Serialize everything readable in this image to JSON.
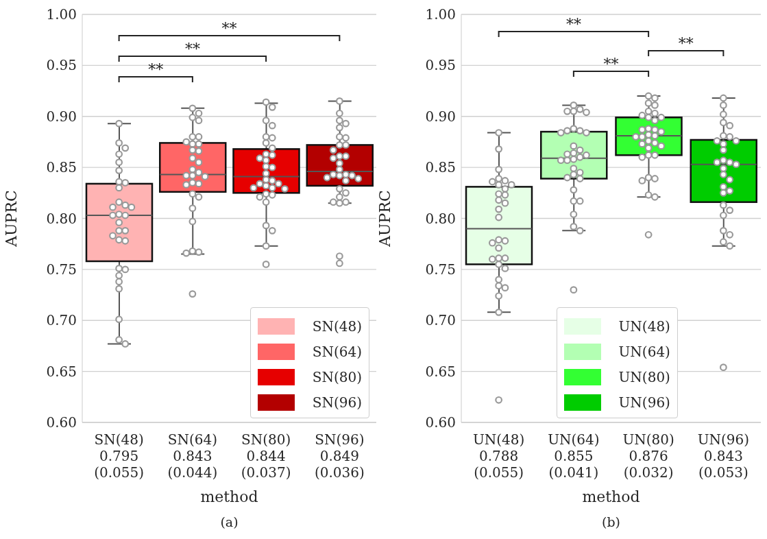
{
  "chart_data": [
    {
      "type": "box",
      "xlabel": "method",
      "ylabel": "AUPRC",
      "categories": [
        "SN(48)\n0.795\n(0.055)",
        "SN(64)\n0.843\n(0.044)",
        "SN(80)\n0.844\n(0.037)",
        "SN(96)\n0.849\n(0.036)"
      ],
      "ylim": [
        0.6,
        1.0
      ],
      "yticks": [
        {
          "value": 0.6,
          "label": "0.60"
        },
        {
          "value": 0.65,
          "label": "0.65"
        },
        {
          "value": 0.7,
          "label": "0.70"
        },
        {
          "value": 0.75,
          "label": "0.75"
        },
        {
          "value": 0.8,
          "label": "0.80"
        },
        {
          "value": 0.85,
          "label": "0.85"
        },
        {
          "value": 0.9,
          "label": "0.90"
        },
        {
          "value": 0.95,
          "label": "0.95"
        },
        {
          "value": 1.0,
          "label": "1.00"
        }
      ],
      "grid": "y",
      "legend": "bottom right",
      "marker": "circle",
      "annotations": [
        "**",
        "**",
        "**",
        "(a)"
      ],
      "series": [
        {
          "type": "box",
          "name": "SN(48)",
          "color": "#ffb3b3",
          "boxes": [
            {
              "low": 0.677,
              "q1": 0.758,
              "median": 0.803,
              "q3": 0.834,
              "high": 0.893
            },
            null,
            null,
            null
          ]
        },
        {
          "type": "box",
          "name": "SN(64)",
          "color": "#ff6666",
          "boxes": [
            null,
            {
              "low": 0.765,
              "q1": 0.826,
              "median": 0.843,
              "q3": 0.874,
              "high": 0.908
            },
            null,
            null
          ]
        },
        {
          "type": "box",
          "name": "SN(80)",
          "color": "#e60000",
          "boxes": [
            null,
            null,
            {
              "low": 0.773,
              "q1": 0.825,
              "median": 0.841,
              "q3": 0.868,
              "high": 0.913
            },
            null
          ]
        },
        {
          "type": "box",
          "name": "SN(96)",
          "color": "#b30000",
          "boxes": [
            null,
            null,
            null,
            {
              "low": 0.815,
              "q1": 0.832,
              "median": 0.846,
              "q3": 0.872,
              "high": 0.915
            }
          ]
        },
        {
          "type": "scatter",
          "color": "#999999",
          "x": [
            "SN(48)\n0.795\n(0.055)",
            "SN(48)\n0.795\n(0.055)",
            "SN(48)\n0.795\n(0.055)",
            "SN(48)\n0.795\n(0.055)",
            "SN(48)\n0.795\n(0.055)",
            "SN(48)\n0.795\n(0.055)",
            "SN(48)\n0.795\n(0.055)",
            "SN(48)\n0.795\n(0.055)",
            "SN(48)\n0.795\n(0.055)",
            "SN(48)\n0.795\n(0.055)",
            "SN(48)\n0.795\n(0.055)",
            "SN(48)\n0.795\n(0.055)",
            "SN(48)\n0.795\n(0.055)",
            "SN(48)\n0.795\n(0.055)",
            "SN(48)\n0.795\n(0.055)",
            "SN(48)\n0.795\n(0.055)",
            "SN(48)\n0.795\n(0.055)",
            "SN(48)\n0.795\n(0.055)",
            "SN(48)\n0.795\n(0.055)",
            "SN(48)\n0.795\n(0.055)",
            "SN(48)\n0.795\n(0.055)",
            "SN(48)\n0.795\n(0.055)",
            "SN(48)\n0.795\n(0.055)",
            "SN(48)\n0.795\n(0.055)",
            "SN(48)\n0.795\n(0.055)",
            "SN(48)\n0.795\n(0.055)",
            "SN(48)\n0.795\n(0.055)",
            "SN(48)\n0.795\n(0.055)",
            "SN(48)\n0.795\n(0.055)",
            "SN(48)\n0.795\n(0.055)"
          ],
          "values": [
            0.893,
            0.874,
            0.869,
            0.863,
            0.855,
            0.847,
            0.836,
            0.835,
            0.83,
            0.816,
            0.813,
            0.811,
            0.811,
            0.804,
            0.803,
            0.803,
            0.796,
            0.788,
            0.788,
            0.783,
            0.779,
            0.778,
            0.751,
            0.75,
            0.744,
            0.738,
            0.731,
            0.701,
            0.681,
            0.677
          ]
        },
        {
          "type": "scatter",
          "color": "#999999",
          "x": [
            "SN(64)\n0.843\n(0.044)",
            "SN(64)\n0.843\n(0.044)",
            "SN(64)\n0.843\n(0.044)",
            "SN(64)\n0.843\n(0.044)",
            "SN(64)\n0.843\n(0.044)",
            "SN(64)\n0.843\n(0.044)",
            "SN(64)\n0.843\n(0.044)",
            "SN(64)\n0.843\n(0.044)",
            "SN(64)\n0.843\n(0.044)",
            "SN(64)\n0.843\n(0.044)",
            "SN(64)\n0.843\n(0.044)",
            "SN(64)\n0.843\n(0.044)",
            "SN(64)\n0.843\n(0.044)",
            "SN(64)\n0.843\n(0.044)",
            "SN(64)\n0.843\n(0.044)",
            "SN(64)\n0.843\n(0.044)",
            "SN(64)\n0.843\n(0.044)",
            "SN(64)\n0.843\n(0.044)",
            "SN(64)\n0.843\n(0.044)",
            "SN(64)\n0.843\n(0.044)",
            "SN(64)\n0.843\n(0.044)",
            "SN(64)\n0.843\n(0.044)",
            "SN(64)\n0.843\n(0.044)",
            "SN(64)\n0.843\n(0.044)",
            "SN(64)\n0.843\n(0.044)",
            "SN(64)\n0.843\n(0.044)",
            "SN(64)\n0.843\n(0.044)",
            "SN(64)\n0.843\n(0.044)",
            "SN(64)\n0.843\n(0.044)"
          ],
          "values": [
            0.908,
            0.903,
            0.899,
            0.896,
            0.88,
            0.88,
            0.875,
            0.873,
            0.873,
            0.867,
            0.866,
            0.859,
            0.855,
            0.848,
            0.845,
            0.842,
            0.842,
            0.841,
            0.835,
            0.834,
            0.833,
            0.824,
            0.821,
            0.81,
            0.797,
            0.768,
            0.767,
            0.766,
            0.726
          ]
        },
        {
          "type": "scatter",
          "color": "#999999",
          "x": [
            "SN(80)\n0.844\n(0.037)",
            "SN(80)\n0.844\n(0.037)",
            "SN(80)\n0.844\n(0.037)",
            "SN(80)\n0.844\n(0.037)",
            "SN(80)\n0.844\n(0.037)",
            "SN(80)\n0.844\n(0.037)",
            "SN(80)\n0.844\n(0.037)",
            "SN(80)\n0.844\n(0.037)",
            "SN(80)\n0.844\n(0.037)",
            "SN(80)\n0.844\n(0.037)",
            "SN(80)\n0.844\n(0.037)",
            "SN(80)\n0.844\n(0.037)",
            "SN(80)\n0.844\n(0.037)",
            "SN(80)\n0.844\n(0.037)",
            "SN(80)\n0.844\n(0.037)",
            "SN(80)\n0.844\n(0.037)",
            "SN(80)\n0.844\n(0.037)",
            "SN(80)\n0.844\n(0.037)",
            "SN(80)\n0.844\n(0.037)",
            "SN(80)\n0.844\n(0.037)",
            "SN(80)\n0.844\n(0.037)",
            "SN(80)\n0.844\n(0.037)",
            "SN(80)\n0.844\n(0.037)",
            "SN(80)\n0.844\n(0.037)",
            "SN(80)\n0.844\n(0.037)",
            "SN(80)\n0.844\n(0.037)",
            "SN(80)\n0.844\n(0.037)",
            "SN(80)\n0.844\n(0.037)",
            "SN(80)\n0.844\n(0.037)",
            "SN(80)\n0.844\n(0.037)",
            "SN(80)\n0.844\n(0.037)"
          ],
          "values": [
            0.914,
            0.909,
            0.896,
            0.891,
            0.88,
            0.879,
            0.874,
            0.869,
            0.863,
            0.862,
            0.859,
            0.857,
            0.851,
            0.85,
            0.844,
            0.838,
            0.837,
            0.834,
            0.834,
            0.832,
            0.83,
            0.83,
            0.829,
            0.824,
            0.823,
            0.821,
            0.816,
            0.793,
            0.788,
            0.773,
            0.755
          ]
        },
        {
          "type": "scatter",
          "color": "#999999",
          "x": [
            "SN(96)\n0.849\n(0.036)",
            "SN(96)\n0.849\n(0.036)",
            "SN(96)\n0.849\n(0.036)",
            "SN(96)\n0.849\n(0.036)",
            "SN(96)\n0.849\n(0.036)",
            "SN(96)\n0.849\n(0.036)",
            "SN(96)\n0.849\n(0.036)",
            "SN(96)\n0.849\n(0.036)",
            "SN(96)\n0.849\n(0.036)",
            "SN(96)\n0.849\n(0.036)",
            "SN(96)\n0.849\n(0.036)",
            "SN(96)\n0.849\n(0.036)",
            "SN(96)\n0.849\n(0.036)",
            "SN(96)\n0.849\n(0.036)",
            "SN(96)\n0.849\n(0.036)",
            "SN(96)\n0.849\n(0.036)",
            "SN(96)\n0.849\n(0.036)",
            "SN(96)\n0.849\n(0.036)",
            "SN(96)\n0.849\n(0.036)",
            "SN(96)\n0.849\n(0.036)",
            "SN(96)\n0.849\n(0.036)",
            "SN(96)\n0.849\n(0.036)",
            "SN(96)\n0.849\n(0.036)",
            "SN(96)\n0.849\n(0.036)",
            "SN(96)\n0.849\n(0.036)",
            "SN(96)\n0.849\n(0.036)",
            "SN(96)\n0.849\n(0.036)",
            "SN(96)\n0.849\n(0.036)",
            "SN(96)\n0.849\n(0.036)",
            "SN(96)\n0.849\n(0.036)"
          ],
          "values": [
            0.915,
            0.903,
            0.896,
            0.893,
            0.889,
            0.88,
            0.879,
            0.872,
            0.872,
            0.867,
            0.861,
            0.861,
            0.859,
            0.854,
            0.848,
            0.843,
            0.843,
            0.842,
            0.842,
            0.84,
            0.839,
            0.837,
            0.829,
            0.825,
            0.821,
            0.816,
            0.815,
            0.816,
            0.763,
            0.756
          ]
        }
      ]
    },
    {
      "type": "box",
      "xlabel": "method",
      "ylabel": "AUPRC",
      "categories": [
        "UN(48)\n0.788\n(0.055)",
        "UN(64)\n0.855\n(0.041)",
        "UN(80)\n0.876\n(0.032)",
        "UN(96)\n0.843\n(0.053)"
      ],
      "ylim": [
        0.6,
        1.0
      ],
      "yticks": [
        {
          "value": 0.6,
          "label": "0.60"
        },
        {
          "value": 0.65,
          "label": "0.65"
        },
        {
          "value": 0.7,
          "label": "0.70"
        },
        {
          "value": 0.75,
          "label": "0.75"
        },
        {
          "value": 0.8,
          "label": "0.80"
        },
        {
          "value": 0.85,
          "label": "0.85"
        },
        {
          "value": 0.9,
          "label": "0.90"
        },
        {
          "value": 0.95,
          "label": "0.95"
        },
        {
          "value": 1.0,
          "label": "1.00"
        }
      ],
      "grid": "y",
      "legend": "bottom",
      "marker": "circle",
      "annotations": [
        "**",
        "**",
        "**",
        "(b)"
      ],
      "series": [
        {
          "type": "box",
          "name": "UN(48)",
          "color": "#e6ffe6",
          "boxes": [
            {
              "low": 0.708,
              "q1": 0.755,
              "median": 0.79,
              "q3": 0.831,
              "high": 0.884
            },
            null,
            null,
            null
          ]
        },
        {
          "type": "box",
          "name": "UN(64)",
          "color": "#b3ffb3",
          "boxes": [
            null,
            {
              "low": 0.788,
              "q1": 0.839,
              "median": 0.859,
              "q3": 0.885,
              "high": 0.911
            },
            null,
            null
          ]
        },
        {
          "type": "box",
          "name": "UN(80)",
          "color": "#33ff33",
          "boxes": [
            null,
            null,
            {
              "low": 0.821,
              "q1": 0.862,
              "median": 0.881,
              "q3": 0.899,
              "high": 0.92
            },
            null
          ]
        },
        {
          "type": "box",
          "name": "UN(96)",
          "color": "#00cc00",
          "boxes": [
            null,
            null,
            null,
            {
              "low": 0.773,
              "q1": 0.816,
              "median": 0.853,
              "q3": 0.877,
              "high": 0.918
            }
          ]
        },
        {
          "type": "scatter",
          "color": "#999999",
          "x": [
            "UN(48)\n0.788\n(0.055)",
            "UN(48)\n0.788\n(0.055)",
            "UN(48)\n0.788\n(0.055)",
            "UN(48)\n0.788\n(0.055)",
            "UN(48)\n0.788\n(0.055)",
            "UN(48)\n0.788\n(0.055)",
            "UN(48)\n0.788\n(0.055)",
            "UN(48)\n0.788\n(0.055)",
            "UN(48)\n0.788\n(0.055)",
            "UN(48)\n0.788\n(0.055)",
            "UN(48)\n0.788\n(0.055)",
            "UN(48)\n0.788\n(0.055)",
            "UN(48)\n0.788\n(0.055)",
            "UN(48)\n0.788\n(0.055)",
            "UN(48)\n0.788\n(0.055)",
            "UN(48)\n0.788\n(0.055)",
            "UN(48)\n0.788\n(0.055)",
            "UN(48)\n0.788\n(0.055)",
            "UN(48)\n0.788\n(0.055)",
            "UN(48)\n0.788\n(0.055)",
            "UN(48)\n0.788\n(0.055)",
            "UN(48)\n0.788\n(0.055)",
            "UN(48)\n0.788\n(0.055)",
            "UN(48)\n0.788\n(0.055)",
            "UN(48)\n0.788\n(0.055)",
            "UN(48)\n0.788\n(0.055)",
            "UN(48)\n0.788\n(0.055)",
            "UN(48)\n0.788\n(0.055)",
            "UN(48)\n0.788\n(0.055)",
            "UN(48)\n0.788\n(0.055)"
          ],
          "values": [
            0.884,
            0.868,
            0.848,
            0.839,
            0.837,
            0.836,
            0.833,
            0.833,
            0.829,
            0.824,
            0.823,
            0.818,
            0.815,
            0.809,
            0.801,
            0.779,
            0.778,
            0.776,
            0.771,
            0.761,
            0.761,
            0.76,
            0.755,
            0.751,
            0.74,
            0.734,
            0.732,
            0.724,
            0.708,
            0.622
          ]
        },
        {
          "type": "scatter",
          "color": "#999999",
          "x": [
            "UN(64)\n0.855\n(0.041)",
            "UN(64)\n0.855\n(0.041)",
            "UN(64)\n0.855\n(0.041)",
            "UN(64)\n0.855\n(0.041)",
            "UN(64)\n0.855\n(0.041)",
            "UN(64)\n0.855\n(0.041)",
            "UN(64)\n0.855\n(0.041)",
            "UN(64)\n0.855\n(0.041)",
            "UN(64)\n0.855\n(0.041)",
            "UN(64)\n0.855\n(0.041)",
            "UN(64)\n0.855\n(0.041)",
            "UN(64)\n0.855\n(0.041)",
            "UN(64)\n0.855\n(0.041)",
            "UN(64)\n0.855\n(0.041)",
            "UN(64)\n0.855\n(0.041)",
            "UN(64)\n0.855\n(0.041)",
            "UN(64)\n0.855\n(0.041)",
            "UN(64)\n0.855\n(0.041)",
            "UN(64)\n0.855\n(0.041)",
            "UN(64)\n0.855\n(0.041)",
            "UN(64)\n0.855\n(0.041)",
            "UN(64)\n0.855\n(0.041)",
            "UN(64)\n0.855\n(0.041)",
            "UN(64)\n0.855\n(0.041)",
            "UN(64)\n0.855\n(0.041)",
            "UN(64)\n0.855\n(0.041)",
            "UN(64)\n0.855\n(0.041)",
            "UN(64)\n0.855\n(0.041)",
            "UN(64)\n0.855\n(0.041)",
            "UN(64)\n0.855\n(0.041)",
            "UN(64)\n0.855\n(0.041)"
          ],
          "values": [
            0.911,
            0.907,
            0.905,
            0.905,
            0.904,
            0.888,
            0.886,
            0.886,
            0.884,
            0.884,
            0.871,
            0.867,
            0.864,
            0.863,
            0.862,
            0.86,
            0.858,
            0.857,
            0.857,
            0.849,
            0.845,
            0.843,
            0.84,
            0.839,
            0.828,
            0.817,
            0.817,
            0.804,
            0.792,
            0.788,
            0.73
          ]
        },
        {
          "type": "scatter",
          "color": "#999999",
          "x": [
            "UN(80)\n0.876\n(0.032)",
            "UN(80)\n0.876\n(0.032)",
            "UN(80)\n0.876\n(0.032)",
            "UN(80)\n0.876\n(0.032)",
            "UN(80)\n0.876\n(0.032)",
            "UN(80)\n0.876\n(0.032)",
            "UN(80)\n0.876\n(0.032)",
            "UN(80)\n0.876\n(0.032)",
            "UN(80)\n0.876\n(0.032)",
            "UN(80)\n0.876\n(0.032)",
            "UN(80)\n0.876\n(0.032)",
            "UN(80)\n0.876\n(0.032)",
            "UN(80)\n0.876\n(0.032)",
            "UN(80)\n0.876\n(0.032)",
            "UN(80)\n0.876\n(0.032)",
            "UN(80)\n0.876\n(0.032)",
            "UN(80)\n0.876\n(0.032)",
            "UN(80)\n0.876\n(0.032)",
            "UN(80)\n0.876\n(0.032)",
            "UN(80)\n0.876\n(0.032)",
            "UN(80)\n0.876\n(0.032)",
            "UN(80)\n0.876\n(0.032)",
            "UN(80)\n0.876\n(0.032)",
            "UN(80)\n0.876\n(0.032)",
            "UN(80)\n0.876\n(0.032)",
            "UN(80)\n0.876\n(0.032)",
            "UN(80)\n0.876\n(0.032)",
            "UN(80)\n0.876\n(0.032)",
            "UN(80)\n0.876\n(0.032)",
            "UN(80)\n0.876\n(0.032)",
            "UN(80)\n0.876\n(0.032)",
            "UN(80)\n0.876\n(0.032)"
          ],
          "values": [
            0.92,
            0.918,
            0.913,
            0.911,
            0.905,
            0.903,
            0.901,
            0.899,
            0.899,
            0.896,
            0.888,
            0.887,
            0.887,
            0.885,
            0.882,
            0.881,
            0.88,
            0.88,
            0.876,
            0.874,
            0.873,
            0.871,
            0.869,
            0.862,
            0.862,
            0.86,
            0.84,
            0.839,
            0.837,
            0.823,
            0.821,
            0.784
          ]
        },
        {
          "type": "scatter",
          "color": "#999999",
          "x": [
            "UN(96)\n0.843\n(0.053)",
            "UN(96)\n0.843\n(0.053)",
            "UN(96)\n0.843\n(0.053)",
            "UN(96)\n0.843\n(0.053)",
            "UN(96)\n0.843\n(0.053)",
            "UN(96)\n0.843\n(0.053)",
            "UN(96)\n0.843\n(0.053)",
            "UN(96)\n0.843\n(0.053)",
            "UN(96)\n0.843\n(0.053)",
            "UN(96)\n0.843\n(0.053)",
            "UN(96)\n0.843\n(0.053)",
            "UN(96)\n0.843\n(0.053)",
            "UN(96)\n0.843\n(0.053)",
            "UN(96)\n0.843\n(0.053)",
            "UN(96)\n0.843\n(0.053)",
            "UN(96)\n0.843\n(0.053)",
            "UN(96)\n0.843\n(0.053)",
            "UN(96)\n0.843\n(0.053)",
            "UN(96)\n0.843\n(0.053)",
            "UN(96)\n0.843\n(0.053)",
            "UN(96)\n0.843\n(0.053)",
            "UN(96)\n0.843\n(0.053)",
            "UN(96)\n0.843\n(0.053)",
            "UN(96)\n0.843\n(0.053)",
            "UN(96)\n0.843\n(0.053)",
            "UN(96)\n0.843\n(0.053)",
            "UN(96)\n0.843\n(0.053)",
            "UN(96)\n0.843\n(0.053)",
            "UN(96)\n0.843\n(0.053)"
          ],
          "values": [
            0.918,
            0.911,
            0.902,
            0.894,
            0.891,
            0.881,
            0.88,
            0.876,
            0.876,
            0.873,
            0.867,
            0.857,
            0.855,
            0.855,
            0.853,
            0.849,
            0.843,
            0.838,
            0.831,
            0.827,
            0.825,
            0.813,
            0.808,
            0.803,
            0.788,
            0.784,
            0.777,
            0.773,
            0.654
          ]
        }
      ]
    }
  ]
}
